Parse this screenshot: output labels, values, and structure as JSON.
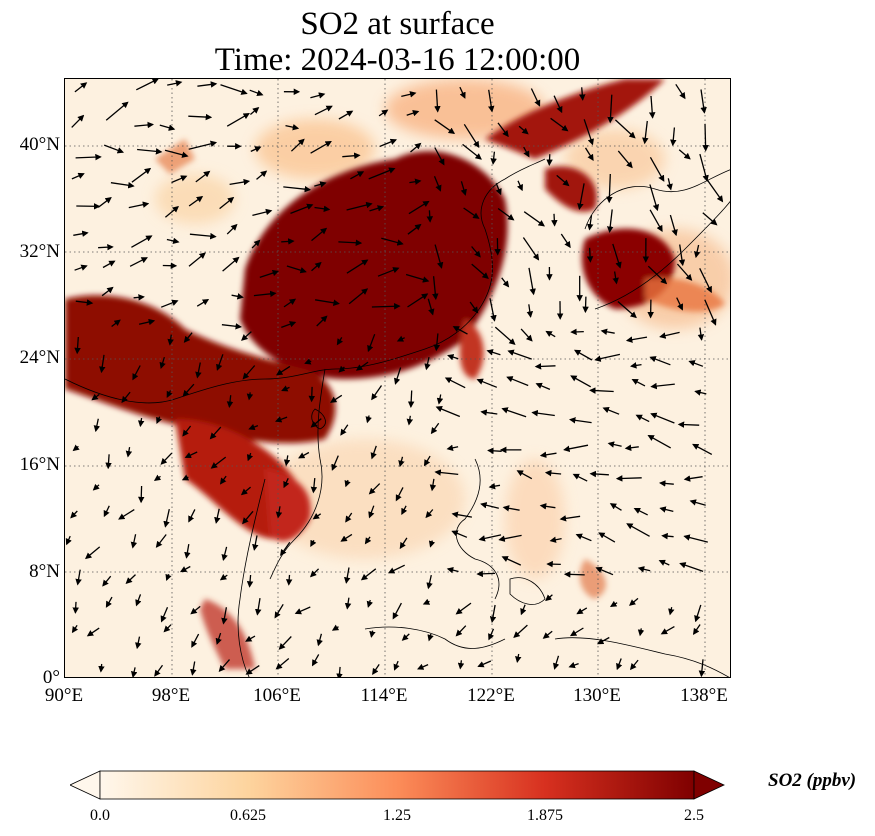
{
  "title": {
    "line1": "SO2 at surface",
    "line2": "Time: 2024-03-16 12:00:00"
  },
  "map": {
    "variable": "SO2",
    "level": "surface",
    "lon_range": [
      90,
      140
    ],
    "lat_range": [
      0,
      45
    ],
    "x_ticks": [
      "90°E",
      "98°E",
      "106°E",
      "114°E",
      "122°E",
      "130°E",
      "138°E"
    ],
    "y_ticks": [
      "0°",
      "8°N",
      "16°N",
      "24°N",
      "32°N",
      "40°N"
    ],
    "grid": "dotted"
  },
  "colorbar": {
    "label": "SO2 (ppbv)",
    "ticks": [
      "0.0",
      "0.625",
      "1.25",
      "1.875",
      "2.5"
    ],
    "extend": "both",
    "colormap": "OrRd",
    "colors": [
      "#fff7ec",
      "#fdd49e",
      "#fc8d59",
      "#d7301f",
      "#7f0000"
    ]
  },
  "colors": {
    "background_field": "#fdf1e0",
    "high_concentration": "#7f0000",
    "coastline": "#000000",
    "wind_arrows": "#000000"
  }
}
